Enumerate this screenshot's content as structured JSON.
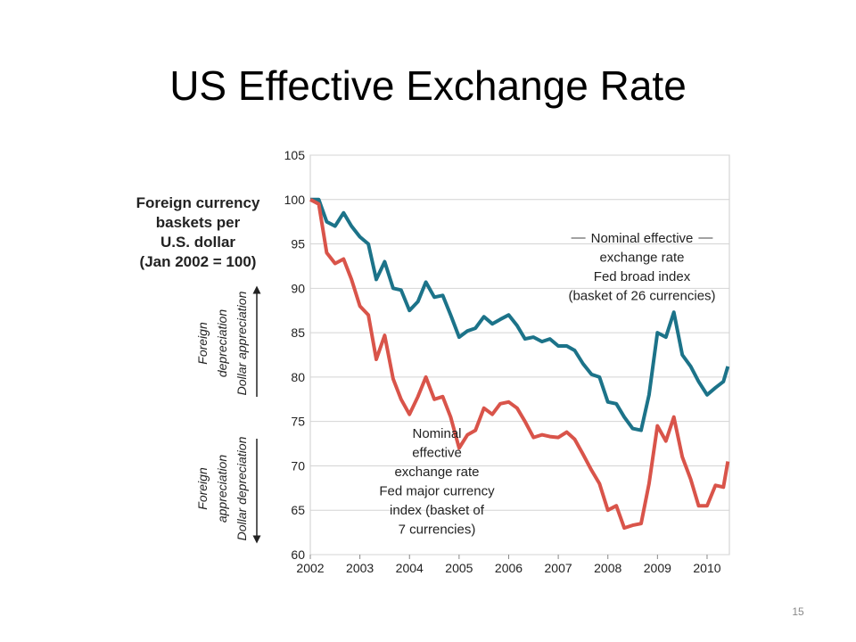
{
  "title": "US Effective Exchange Rate",
  "page_number": "15",
  "chart_data": {
    "type": "line",
    "ylabel": [
      "Foreign currency",
      "baskets per",
      "U.S. dollar",
      "(Jan 2002 = 100)"
    ],
    "axis_notes": [
      {
        "lines": [
          "Foreign",
          "depreciation",
          "Dollar appreciation"
        ],
        "direction": "up"
      },
      {
        "lines": [
          "Foreign",
          "appreciation",
          "Dollar depreciation"
        ],
        "direction": "down"
      }
    ],
    "x": [
      2002,
      2002.17,
      2002.33,
      2002.5,
      2002.67,
      2002.83,
      2003,
      2003.17,
      2003.33,
      2003.5,
      2003.67,
      2003.83,
      2004,
      2004.17,
      2004.33,
      2004.5,
      2004.67,
      2004.83,
      2005,
      2005.17,
      2005.33,
      2005.5,
      2005.67,
      2005.83,
      2006,
      2006.17,
      2006.33,
      2006.5,
      2006.67,
      2006.83,
      2007,
      2007.17,
      2007.33,
      2007.5,
      2007.67,
      2007.83,
      2008,
      2008.17,
      2008.33,
      2008.5,
      2008.67,
      2008.83,
      2009,
      2009.17,
      2009.33,
      2009.5,
      2009.67,
      2009.83,
      2010,
      2010.17,
      2010.33,
      2010.42
    ],
    "series": [
      {
        "name": [
          "Nominal effective",
          "exchange rate",
          "Fed broad index",
          "(basket of 26 currencies)"
        ],
        "color": "#1c7389",
        "values": [
          100,
          100,
          97.5,
          97,
          98.5,
          97,
          95.8,
          95,
          91,
          93,
          90,
          89.8,
          87.5,
          88.5,
          90.7,
          89,
          89.2,
          87,
          84.5,
          85.2,
          85.5,
          86.8,
          86,
          86.5,
          87,
          85.8,
          84.3,
          84.5,
          84,
          84.3,
          83.5,
          83.5,
          83,
          81.5,
          80.3,
          80,
          77.2,
          77,
          75.5,
          74.2,
          74,
          78,
          85,
          84.5,
          87.3,
          82.5,
          81.2,
          79.5,
          78,
          78.8,
          79.5,
          81.2
        ]
      },
      {
        "name": [
          "Nominal",
          "effective",
          "exchange rate",
          "Fed major currency",
          "index (basket of",
          "7 currencies)"
        ],
        "color": "#d9544a",
        "values": [
          100,
          99.5,
          94,
          92.8,
          93.3,
          91,
          88,
          87,
          82,
          84.7,
          79.8,
          77.5,
          75.8,
          77.8,
          80,
          77.5,
          77.8,
          75.5,
          72,
          73.5,
          74,
          76.5,
          75.8,
          77,
          77.2,
          76.5,
          75,
          73.2,
          73.5,
          73.3,
          73.2,
          73.8,
          73,
          71.3,
          69.5,
          68,
          65,
          65.5,
          63,
          63.3,
          63.5,
          68,
          74.5,
          72.8,
          75.5,
          71,
          68.5,
          65.5,
          65.5,
          67.8,
          67.6,
          70.5
        ]
      }
    ],
    "xlim": [
      2002,
      2010.45
    ],
    "xticks": [
      2002,
      2003,
      2004,
      2005,
      2006,
      2007,
      2008,
      2009,
      2010
    ],
    "ylim": [
      60,
      105
    ],
    "yticks": [
      60,
      65,
      70,
      75,
      80,
      85,
      90,
      95,
      100,
      105
    ],
    "grid": true
  }
}
